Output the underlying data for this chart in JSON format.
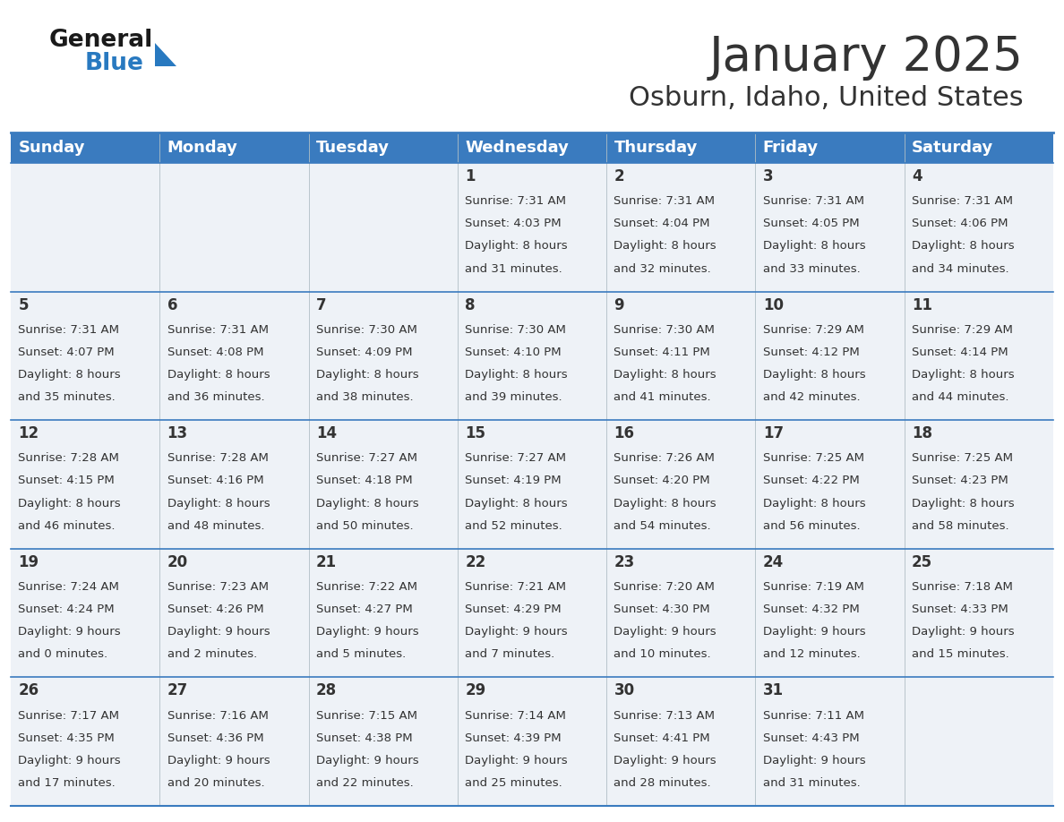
{
  "title": "January 2025",
  "subtitle": "Osburn, Idaho, United States",
  "header_bg": "#3a7bbf",
  "header_text_color": "#ffffff",
  "cell_bg_light": "#eef2f7",
  "day_names": [
    "Sunday",
    "Monday",
    "Tuesday",
    "Wednesday",
    "Thursday",
    "Friday",
    "Saturday"
  ],
  "weeks": [
    [
      {
        "day": "",
        "sunrise": "",
        "sunset": "",
        "daylight": ""
      },
      {
        "day": "",
        "sunrise": "",
        "sunset": "",
        "daylight": ""
      },
      {
        "day": "",
        "sunrise": "",
        "sunset": "",
        "daylight": ""
      },
      {
        "day": "1",
        "sunrise": "7:31 AM",
        "sunset": "4:03 PM",
        "daylight": "8 hours\nand 31 minutes."
      },
      {
        "day": "2",
        "sunrise": "7:31 AM",
        "sunset": "4:04 PM",
        "daylight": "8 hours\nand 32 minutes."
      },
      {
        "day": "3",
        "sunrise": "7:31 AM",
        "sunset": "4:05 PM",
        "daylight": "8 hours\nand 33 minutes."
      },
      {
        "day": "4",
        "sunrise": "7:31 AM",
        "sunset": "4:06 PM",
        "daylight": "8 hours\nand 34 minutes."
      }
    ],
    [
      {
        "day": "5",
        "sunrise": "7:31 AM",
        "sunset": "4:07 PM",
        "daylight": "8 hours\nand 35 minutes."
      },
      {
        "day": "6",
        "sunrise": "7:31 AM",
        "sunset": "4:08 PM",
        "daylight": "8 hours\nand 36 minutes."
      },
      {
        "day": "7",
        "sunrise": "7:30 AM",
        "sunset": "4:09 PM",
        "daylight": "8 hours\nand 38 minutes."
      },
      {
        "day": "8",
        "sunrise": "7:30 AM",
        "sunset": "4:10 PM",
        "daylight": "8 hours\nand 39 minutes."
      },
      {
        "day": "9",
        "sunrise": "7:30 AM",
        "sunset": "4:11 PM",
        "daylight": "8 hours\nand 41 minutes."
      },
      {
        "day": "10",
        "sunrise": "7:29 AM",
        "sunset": "4:12 PM",
        "daylight": "8 hours\nand 42 minutes."
      },
      {
        "day": "11",
        "sunrise": "7:29 AM",
        "sunset": "4:14 PM",
        "daylight": "8 hours\nand 44 minutes."
      }
    ],
    [
      {
        "day": "12",
        "sunrise": "7:28 AM",
        "sunset": "4:15 PM",
        "daylight": "8 hours\nand 46 minutes."
      },
      {
        "day": "13",
        "sunrise": "7:28 AM",
        "sunset": "4:16 PM",
        "daylight": "8 hours\nand 48 minutes."
      },
      {
        "day": "14",
        "sunrise": "7:27 AM",
        "sunset": "4:18 PM",
        "daylight": "8 hours\nand 50 minutes."
      },
      {
        "day": "15",
        "sunrise": "7:27 AM",
        "sunset": "4:19 PM",
        "daylight": "8 hours\nand 52 minutes."
      },
      {
        "day": "16",
        "sunrise": "7:26 AM",
        "sunset": "4:20 PM",
        "daylight": "8 hours\nand 54 minutes."
      },
      {
        "day": "17",
        "sunrise": "7:25 AM",
        "sunset": "4:22 PM",
        "daylight": "8 hours\nand 56 minutes."
      },
      {
        "day": "18",
        "sunrise": "7:25 AM",
        "sunset": "4:23 PM",
        "daylight": "8 hours\nand 58 minutes."
      }
    ],
    [
      {
        "day": "19",
        "sunrise": "7:24 AM",
        "sunset": "4:24 PM",
        "daylight": "9 hours\nand 0 minutes."
      },
      {
        "day": "20",
        "sunrise": "7:23 AM",
        "sunset": "4:26 PM",
        "daylight": "9 hours\nand 2 minutes."
      },
      {
        "day": "21",
        "sunrise": "7:22 AM",
        "sunset": "4:27 PM",
        "daylight": "9 hours\nand 5 minutes."
      },
      {
        "day": "22",
        "sunrise": "7:21 AM",
        "sunset": "4:29 PM",
        "daylight": "9 hours\nand 7 minutes."
      },
      {
        "day": "23",
        "sunrise": "7:20 AM",
        "sunset": "4:30 PM",
        "daylight": "9 hours\nand 10 minutes."
      },
      {
        "day": "24",
        "sunrise": "7:19 AM",
        "sunset": "4:32 PM",
        "daylight": "9 hours\nand 12 minutes."
      },
      {
        "day": "25",
        "sunrise": "7:18 AM",
        "sunset": "4:33 PM",
        "daylight": "9 hours\nand 15 minutes."
      }
    ],
    [
      {
        "day": "26",
        "sunrise": "7:17 AM",
        "sunset": "4:35 PM",
        "daylight": "9 hours\nand 17 minutes."
      },
      {
        "day": "27",
        "sunrise": "7:16 AM",
        "sunset": "4:36 PM",
        "daylight": "9 hours\nand 20 minutes."
      },
      {
        "day": "28",
        "sunrise": "7:15 AM",
        "sunset": "4:38 PM",
        "daylight": "9 hours\nand 22 minutes."
      },
      {
        "day": "29",
        "sunrise": "7:14 AM",
        "sunset": "4:39 PM",
        "daylight": "9 hours\nand 25 minutes."
      },
      {
        "day": "30",
        "sunrise": "7:13 AM",
        "sunset": "4:41 PM",
        "daylight": "9 hours\nand 28 minutes."
      },
      {
        "day": "31",
        "sunrise": "7:11 AM",
        "sunset": "4:43 PM",
        "daylight": "9 hours\nand 31 minutes."
      },
      {
        "day": "",
        "sunrise": "",
        "sunset": "",
        "daylight": ""
      }
    ]
  ],
  "title_fontsize": 38,
  "subtitle_fontsize": 22,
  "header_fontsize": 13,
  "day_number_fontsize": 12,
  "cell_text_fontsize": 9.5,
  "divider_color": "#3a7bbf",
  "text_color": "#333333",
  "logo_general_color": "#1a1a1a",
  "logo_blue_color": "#2879c0",
  "triangle_color": "#2879c0"
}
